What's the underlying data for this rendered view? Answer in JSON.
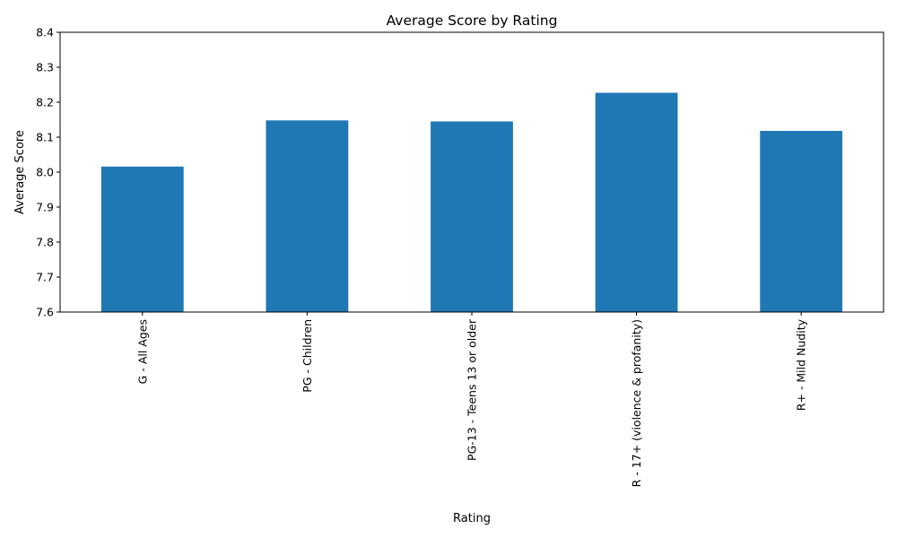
{
  "chart_data": {
    "type": "bar",
    "title": "Average Score by Rating",
    "xlabel": "Rating",
    "ylabel": "Average Score",
    "categories": [
      "G - All Ages",
      "PG - Children",
      "PG-13 - Teens 13 or older",
      "R - 17+ (violence & profanity)",
      "R+ - Mild Nudity"
    ],
    "values": [
      8.016,
      8.148,
      8.145,
      8.227,
      8.118
    ],
    "ylim": [
      7.6,
      8.4
    ],
    "yticks": [
      "7.6",
      "7.7",
      "7.8",
      "7.9",
      "8.0",
      "8.1",
      "8.2",
      "8.3",
      "8.4"
    ],
    "grid": false,
    "legend": "none",
    "bar_color": "#1f77b4"
  }
}
